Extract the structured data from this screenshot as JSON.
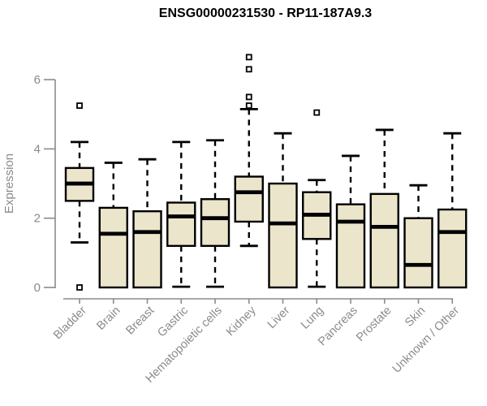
{
  "chart_data": {
    "type": "box",
    "title": "ENSG00000231530 - RP11-187A9.3",
    "ylabel": "Expression",
    "xlabel": "",
    "ylim": [
      0,
      7.3
    ],
    "yticks": [
      0,
      2,
      4,
      6
    ],
    "grid": false,
    "legend": "none",
    "box_fill_color": "#EBE6CB",
    "box_line_color": "#000000",
    "axis_color": "#8A8A8A",
    "categories": [
      "Bladder",
      "Brain",
      "Breast",
      "Gastric",
      "Hematopoietic cells",
      "Kidney",
      "Liver",
      "Lung",
      "Pancreas",
      "Prostate",
      "Skin",
      "Unknown / Other"
    ],
    "series": [
      {
        "label": "Bladder",
        "whisker_low": 1.3,
        "q1": 2.5,
        "median": 3.0,
        "q3": 3.45,
        "whisker_high": 4.2,
        "outliers": [
          5.25,
          0.0
        ]
      },
      {
        "label": "Brain",
        "whisker_low": 0.0,
        "q1": 0.0,
        "median": 1.55,
        "q3": 2.3,
        "whisker_high": 3.6,
        "outliers": []
      },
      {
        "label": "Breast",
        "whisker_low": 0.0,
        "q1": 0.0,
        "median": 1.6,
        "q3": 2.2,
        "whisker_high": 3.7,
        "outliers": []
      },
      {
        "label": "Gastric",
        "whisker_low": 0.02,
        "q1": 1.2,
        "median": 2.05,
        "q3": 2.45,
        "whisker_high": 4.2,
        "outliers": []
      },
      {
        "label": "Hematopoietic cells",
        "whisker_low": 0.02,
        "q1": 1.2,
        "median": 2.0,
        "q3": 2.55,
        "whisker_high": 4.25,
        "outliers": []
      },
      {
        "label": "Kidney",
        "whisker_low": 1.2,
        "q1": 1.9,
        "median": 2.75,
        "q3": 3.2,
        "whisker_high": 5.15,
        "outliers": [
          6.65,
          6.3,
          5.5,
          5.25
        ]
      },
      {
        "label": "Liver",
        "whisker_low": 0.0,
        "q1": 0.0,
        "median": 1.85,
        "q3": 3.0,
        "whisker_high": 4.45,
        "outliers": []
      },
      {
        "label": "Lung",
        "whisker_low": 0.02,
        "q1": 1.4,
        "median": 2.1,
        "q3": 2.75,
        "whisker_high": 3.1,
        "outliers": [
          5.05
        ]
      },
      {
        "label": "Pancreas",
        "whisker_low": 0.0,
        "q1": 0.0,
        "median": 1.9,
        "q3": 2.4,
        "whisker_high": 3.8,
        "outliers": []
      },
      {
        "label": "Prostate",
        "whisker_low": 0.0,
        "q1": 0.0,
        "median": 1.75,
        "q3": 2.7,
        "whisker_high": 4.55,
        "outliers": []
      },
      {
        "label": "Skin",
        "whisker_low": 0.0,
        "q1": 0.0,
        "median": 0.65,
        "q3": 2.0,
        "whisker_high": 2.95,
        "outliers": []
      },
      {
        "label": "Unknown / Other",
        "whisker_low": 0.0,
        "q1": 0.0,
        "median": 1.6,
        "q3": 2.25,
        "whisker_high": 4.45,
        "outliers": []
      }
    ]
  }
}
